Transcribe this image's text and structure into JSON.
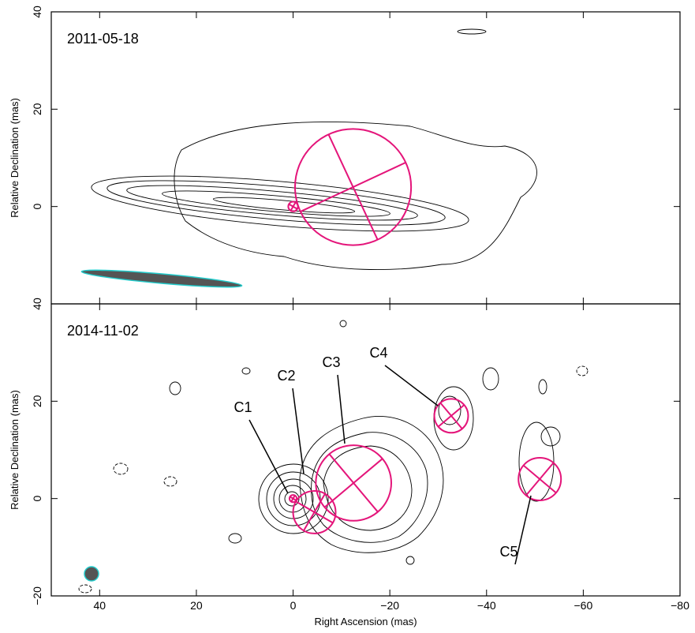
{
  "chart_data": [
    {
      "type": "contour",
      "title": "2011-05-18",
      "ylabel": "Relative Declination  (mas)",
      "xlim": [
        50,
        -80
      ],
      "ylim": [
        -20,
        40
      ],
      "yticks": [
        40,
        20,
        0
      ],
      "color": "#e4157a",
      "components": {
        "ra": [
          0,
          -12.4
        ],
        "dec": [
          0,
          4
        ],
        "size": [
          2,
          24
        ]
      }
    },
    {
      "type": "contour",
      "title": "2014-11-02",
      "ylabel": "Relative Declination  (mas)",
      "xlabel": "Right Ascension  (mas)",
      "xlim": [
        50,
        -80
      ],
      "ylim": [
        -20,
        40
      ],
      "xticks": [
        40,
        20,
        0,
        {
          "value": -20,
          "label": "−20"
        },
        {
          "value": -40,
          "label": "−40"
        },
        {
          "value": -60,
          "label": "−60"
        },
        {
          "value": -80,
          "label": "−80"
        }
      ],
      "yticks": [
        40,
        20,
        0,
        {
          "value": -20,
          "label": "−20"
        }
      ],
      "color": "#e4157a",
      "components": {
        "names": [
          "C1",
          "C2",
          "C3",
          "C4",
          "C5"
        ],
        "ra": [
          0,
          -4.4,
          -12.5,
          -32.7,
          -51
        ],
        "dec": [
          0,
          -2.8,
          3.2,
          17,
          4
        ],
        "size": [
          1.5,
          8.8,
          15.6,
          7,
          8.8
        ]
      }
    }
  ]
}
